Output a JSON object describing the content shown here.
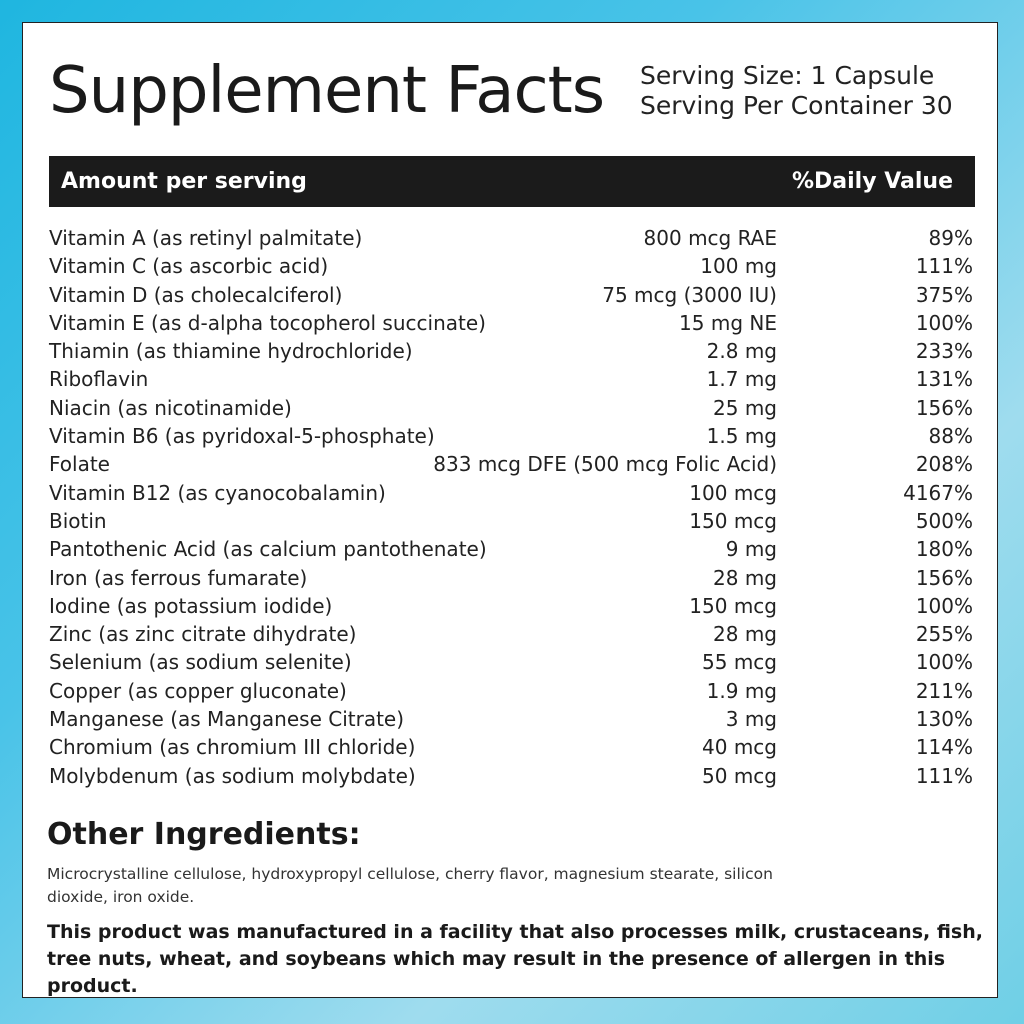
{
  "title": "Supplement Facts",
  "serving_size": "Serving Size: 1 Capsule",
  "servings_per_container": "Serving Per Container 30",
  "header": {
    "amount_label": "Amount per serving",
    "dv_label": "%Daily Value"
  },
  "nutrients": [
    {
      "name": "Vitamin A (as retinyl palmitate)",
      "amount": "800 mcg RAE",
      "dv": "89%"
    },
    {
      "name": "Vitamin C (as ascorbic acid)",
      "amount": "100 mg",
      "dv": "111%"
    },
    {
      "name": "Vitamin D (as cholecalciferol)",
      "amount": "75 mcg (3000 IU)",
      "dv": "375%"
    },
    {
      "name": "Vitamin E (as d-alpha tocopherol succinate)",
      "amount": "15 mg NE",
      "dv": "100%"
    },
    {
      "name": "Thiamin (as thiamine hydrochloride)",
      "amount": "2.8 mg",
      "dv": "233%"
    },
    {
      "name": "Riboflavin",
      "amount": "1.7 mg",
      "dv": "131%"
    },
    {
      "name": "Niacin (as nicotinamide)",
      "amount": "25 mg",
      "dv": "156%"
    },
    {
      "name": "Vitamin B6 (as pyridoxal-5-phosphate)",
      "amount": "1.5 mg",
      "dv": "88%"
    },
    {
      "name": "Folate",
      "amount": "833 mcg DFE (500 mcg Folic Acid)",
      "dv": "208%"
    },
    {
      "name": "Vitamin B12 (as cyanocobalamin)",
      "amount": "100 mcg",
      "dv": "4167%"
    },
    {
      "name": "Biotin",
      "amount": "150 mcg",
      "dv": "500%"
    },
    {
      "name": "Pantothenic Acid (as calcium pantothenate)",
      "amount": "9 mg",
      "dv": "180%"
    },
    {
      "name": "Iron (as ferrous fumarate)",
      "amount": "28 mg",
      "dv": "156%"
    },
    {
      "name": "Iodine (as potassium iodide)",
      "amount": "150 mcg",
      "dv": "100%"
    },
    {
      "name": "Zinc (as zinc citrate dihydrate)",
      "amount": "28 mg",
      "dv": "255%"
    },
    {
      "name": "Selenium (as sodium selenite)",
      "amount": "55 mcg",
      "dv": "100%"
    },
    {
      "name": "Copper (as copper gluconate)",
      "amount": "1.9 mg",
      "dv": "211%"
    },
    {
      "name": "Manganese (as Manganese Citrate)",
      "amount": "3 mg",
      "dv": "130%"
    },
    {
      "name": "Chromium (as chromium III chloride)",
      "amount": "40 mcg",
      "dv": "114%"
    },
    {
      "name": "Molybdenum (as sodium molybdate)",
      "amount": "50 mcg",
      "dv": "111%"
    }
  ],
  "other_ingredients": {
    "title": "Other Ingredients:",
    "text": "Microcrystalline cellulose, hydroxypropyl cellulose, cherry flavor, magnesium stearate, silicon dioxide, iron oxide."
  },
  "allergen_statement": "This product was manufactured in a facility that also processes milk, crustaceans, fish, tree nuts, wheat, and soybeans which may result in the presence of allergen in this product.",
  "colors": {
    "background_accent": "#1fb6e0",
    "header_bar": "#1b1b1b",
    "card": "#ffffff"
  }
}
